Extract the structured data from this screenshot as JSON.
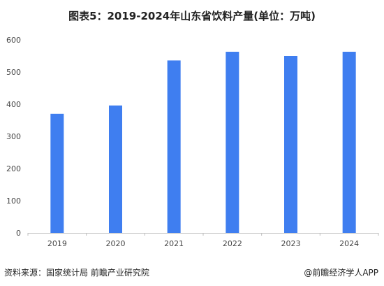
{
  "title": "图表5：2019-2024年山东省饮料产量(单位：万吨)",
  "source": "资料来源：国家统计局 前瞻产业研究院",
  "credit": "@前瞻经济学人APP",
  "colors": {
    "bar": "#3f7ef0",
    "axis": "#bdbdbd",
    "text": "#222222"
  },
  "chart_data": {
    "type": "bar",
    "title": "图表5：2019-2024年山东省饮料产量(单位：万吨)",
    "categories": [
      "2019",
      "2020",
      "2021",
      "2022",
      "2023",
      "2024"
    ],
    "values": [
      370,
      396,
      536,
      563,
      550,
      563
    ],
    "ylim": [
      0,
      600
    ],
    "yticks": [
      0,
      100,
      200,
      300,
      400,
      500,
      600
    ],
    "grid": false,
    "xlabel": "",
    "ylabel": ""
  }
}
